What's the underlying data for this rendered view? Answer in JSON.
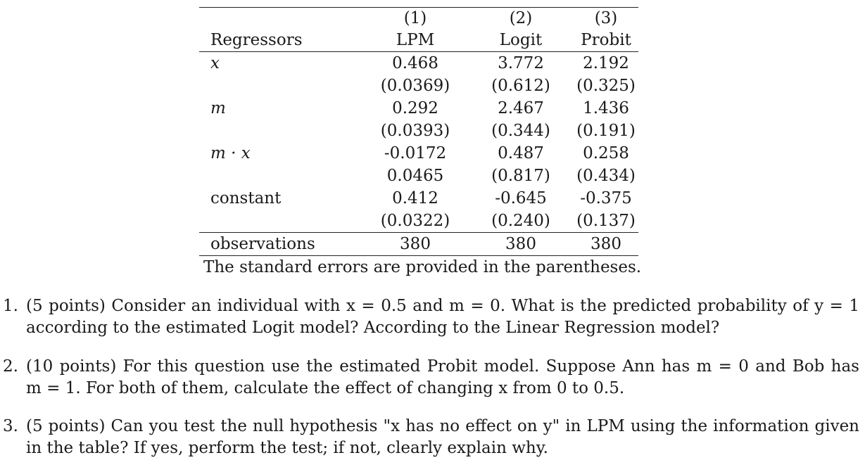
{
  "table": {
    "header": {
      "col_numbers": [
        "(1)",
        "(2)",
        "(3)"
      ],
      "regressors_label": "Regressors",
      "col_names": [
        "LPM",
        "Logit",
        "Probit"
      ]
    },
    "rows": [
      {
        "label": "x",
        "coefs": [
          "0.468",
          "3.772",
          "2.192"
        ],
        "ses": [
          "(0.0369)",
          "(0.612)",
          "(0.325)"
        ]
      },
      {
        "label": "m",
        "coefs": [
          "0.292",
          "2.467",
          "1.436"
        ],
        "ses": [
          "(0.0393)",
          "(0.344)",
          "(0.191)"
        ]
      },
      {
        "label": "m · x",
        "coefs": [
          "-0.0172",
          "0.487",
          "0.258"
        ],
        "ses": [
          "0.0465",
          "(0.817)",
          "(0.434)"
        ]
      },
      {
        "label": "constant",
        "coefs": [
          "0.412",
          "-0.645",
          "-0.375"
        ],
        "ses": [
          "(0.0322)",
          "(0.240)",
          "(0.137)"
        ]
      }
    ],
    "observations": {
      "label": "observations",
      "values": [
        "380",
        "380",
        "380"
      ]
    },
    "note": "The standard errors are provided in the parentheses."
  },
  "questions": [
    {
      "number": "1.",
      "lines": [
        "(5 points) Consider an individual with x = 0.5 and m = 0. What is the predicted probability of y = 1",
        "according to the estimated Logit model? According to the Linear Regression model?"
      ]
    },
    {
      "number": "2.",
      "lines": [
        "(10 points) For this question use the estimated Probit model. Suppose Ann has m = 0 and Bob has",
        "m = 1. For both of them, calculate the effect of changing x from 0 to 0.5."
      ]
    },
    {
      "number": "3.",
      "lines": [
        "(5 points) Can you test the null hypothesis \"x has no effect on y\" in LPM using the information given",
        "in the table? If yes, perform the test; if not, clearly explain why."
      ]
    }
  ]
}
